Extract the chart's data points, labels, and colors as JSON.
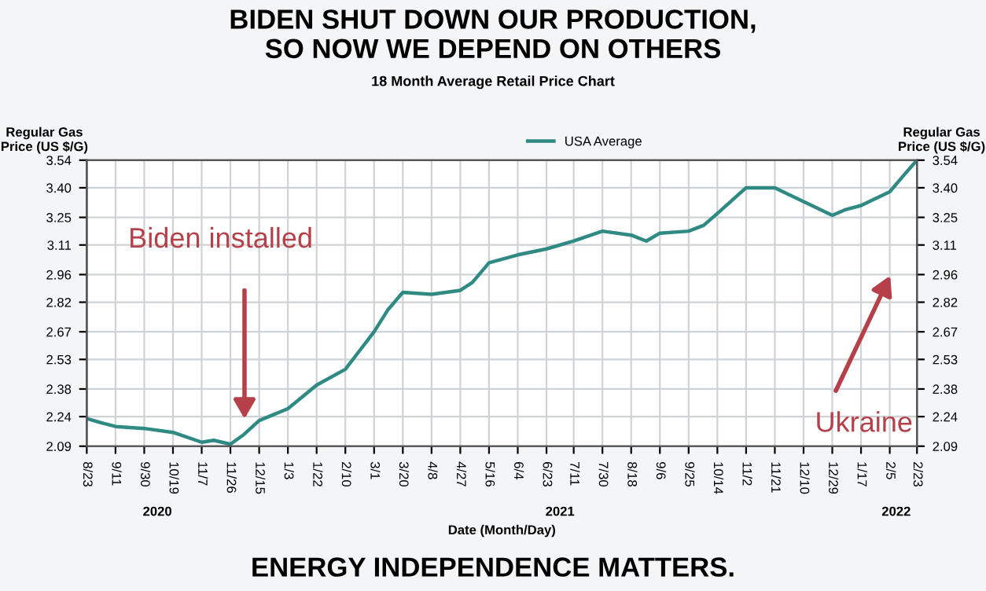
{
  "chart_data": {
    "type": "line",
    "title": "BIDEN SHUT DOWN OUR PRODUCTION,\nSO NOW WE DEPEND ON OTHERS",
    "subtitle": "18 Month Average Retail Price Chart",
    "xlabel": "Date (Month/Day)",
    "ylabel": "Regular Gas\nPrice (US $/G)",
    "y2label": "Regular Gas\nPrice (US $/G)",
    "x": [
      "2020-08-23",
      "2020-09-01",
      "2020-09-11",
      "2020-09-30",
      "2020-10-19",
      "2020-11-07",
      "2020-11-15",
      "2020-11-26",
      "2020-12-05",
      "2020-12-15",
      "2021-01-03",
      "2021-01-22",
      "2021-02-10",
      "2021-02-20",
      "2021-03-01",
      "2021-03-10",
      "2021-03-20",
      "2021-04-08",
      "2021-04-27",
      "2021-05-05",
      "2021-05-16",
      "2021-06-04",
      "2021-06-23",
      "2021-07-11",
      "2021-07-30",
      "2021-08-18",
      "2021-08-28",
      "2021-09-06",
      "2021-09-25",
      "2021-10-05",
      "2021-10-14",
      "2021-11-02",
      "2021-11-21",
      "2021-12-10",
      "2021-12-29",
      "2022-01-07",
      "2022-01-17",
      "2022-02-05",
      "2022-02-15",
      "2022-02-23"
    ],
    "series": [
      {
        "name": "USA Average",
        "color": "#2f8a84",
        "values": [
          2.23,
          2.21,
          2.19,
          2.18,
          2.16,
          2.11,
          2.12,
          2.1,
          2.15,
          2.22,
          2.28,
          2.4,
          2.48,
          2.58,
          2.67,
          2.78,
          2.87,
          2.86,
          2.88,
          2.92,
          3.02,
          3.06,
          3.09,
          3.13,
          3.18,
          3.16,
          3.13,
          3.17,
          3.18,
          3.21,
          3.27,
          3.4,
          3.4,
          3.33,
          3.26,
          3.29,
          3.31,
          3.38,
          3.47,
          3.54
        ]
      }
    ],
    "xlim": [
      "2020-08-23",
      "2022-02-23"
    ],
    "xticks": [
      {
        "value": "2020-08-23",
        "label": "8/23"
      },
      {
        "value": "2020-09-11",
        "label": "9/11"
      },
      {
        "value": "2020-09-30",
        "label": "9/30"
      },
      {
        "value": "2020-10-19",
        "label": "10/19"
      },
      {
        "value": "2020-11-07",
        "label": "11/7"
      },
      {
        "value": "2020-11-26",
        "label": "11/26"
      },
      {
        "value": "2020-12-15",
        "label": "12/15"
      },
      {
        "value": "2021-01-03",
        "label": "1/3"
      },
      {
        "value": "2021-01-22",
        "label": "1/22"
      },
      {
        "value": "2021-02-10",
        "label": "2/10"
      },
      {
        "value": "2021-03-01",
        "label": "3/1"
      },
      {
        "value": "2021-03-20",
        "label": "3/20"
      },
      {
        "value": "2021-04-08",
        "label": "4/8"
      },
      {
        "value": "2021-04-27",
        "label": "4/27"
      },
      {
        "value": "2021-05-16",
        "label": "5/16"
      },
      {
        "value": "2021-06-04",
        "label": "6/4"
      },
      {
        "value": "2021-06-23",
        "label": "6/23"
      },
      {
        "value": "2021-07-11",
        "label": "7/11"
      },
      {
        "value": "2021-07-30",
        "label": "7/30"
      },
      {
        "value": "2021-08-18",
        "label": "8/18"
      },
      {
        "value": "2021-09-06",
        "label": "9/6"
      },
      {
        "value": "2021-09-25",
        "label": "9/25"
      },
      {
        "value": "2021-10-14",
        "label": "10/14"
      },
      {
        "value": "2021-11-02",
        "label": "11/2"
      },
      {
        "value": "2021-11-21",
        "label": "11/21"
      },
      {
        "value": "2021-12-10",
        "label": "12/10"
      },
      {
        "value": "2021-12-29",
        "label": "12/29"
      },
      {
        "value": "2022-01-17",
        "label": "1/17"
      },
      {
        "value": "2022-02-05",
        "label": "2/5"
      },
      {
        "value": "2022-02-23",
        "label": "2/23"
      }
    ],
    "ylim": [
      2.09,
      3.54
    ],
    "yticks": [
      2.09,
      2.24,
      2.38,
      2.53,
      2.67,
      2.82,
      2.96,
      3.11,
      3.25,
      {
        "value": 3.4,
        "label": "3.40"
      },
      3.54
    ],
    "y2lim": [
      2.09,
      3.54
    ],
    "y2ticks": [
      2.09,
      2.24,
      2.38,
      2.53,
      2.67,
      2.82,
      2.96,
      3.11,
      3.25,
      {
        "value": 3.4,
        "label": "3.40"
      },
      3.54
    ],
    "grid": true,
    "legend": "top",
    "marker": "none",
    "line_style": "solid",
    "annotations": [
      "Biden installed",
      "Ukraine",
      "2020",
      "2021",
      "2022",
      "ENERGY INDEPENDENCE MATTERS."
    ]
  }
}
